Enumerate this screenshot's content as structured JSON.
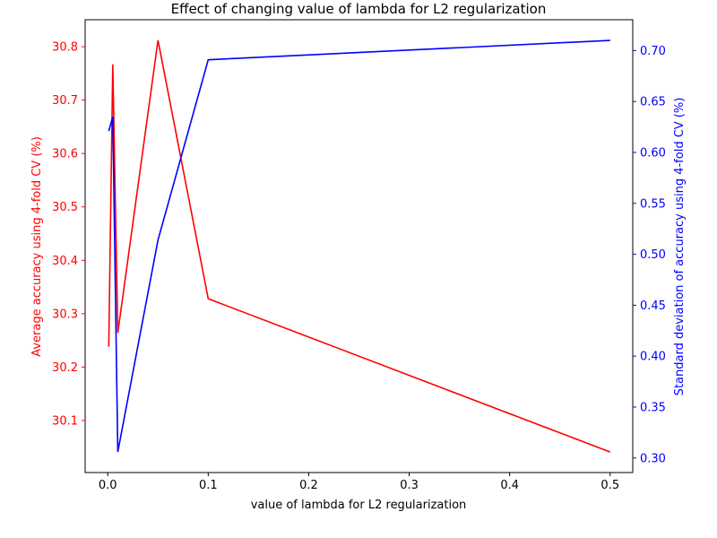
{
  "chart_data": {
    "type": "line",
    "title": "Effect of changing value of lambda for L2 regularization",
    "xlabel": "value of lambda for L2 regularization",
    "xlim": [
      -0.0225,
      0.5225
    ],
    "x_ticks": [
      0.0,
      0.1,
      0.2,
      0.3,
      0.4,
      0.5
    ],
    "x_tick_labels": [
      "0.0",
      "0.1",
      "0.2",
      "0.3",
      "0.4",
      "0.5"
    ],
    "grid": false,
    "series": [
      {
        "axis": "left",
        "color": "#ff0000",
        "x": [
          0.001,
          0.005,
          0.01,
          0.05,
          0.1,
          0.5
        ],
        "values": [
          30.238,
          30.767,
          30.264,
          30.812,
          30.328,
          30.041
        ]
      },
      {
        "axis": "right",
        "color": "#0000ff",
        "x": [
          0.001,
          0.005,
          0.01,
          0.05,
          0.1,
          0.5
        ],
        "values": [
          0.621,
          0.635,
          0.306,
          0.514,
          0.691,
          0.71
        ]
      }
    ],
    "y_left": {
      "label": "Average accuracy using 4-fold CV (%)",
      "color": "#ff0000",
      "ylim": [
        30.0025,
        30.8505
      ],
      "ticks": [
        30.1,
        30.2,
        30.3,
        30.4,
        30.5,
        30.6,
        30.7,
        30.8
      ],
      "tick_labels": [
        "30.1",
        "30.2",
        "30.3",
        "30.4",
        "30.5",
        "30.6",
        "30.7",
        "30.8"
      ]
    },
    "y_right": {
      "label": "Standard deviation of accuracy using 4-fold CV (%)",
      "color": "#0000ff",
      "ylim": [
        0.2857,
        0.7303
      ],
      "ticks": [
        0.3,
        0.35,
        0.4,
        0.45,
        0.5,
        0.55,
        0.6,
        0.65,
        0.7
      ],
      "tick_labels": [
        "0.30",
        "0.35",
        "0.40",
        "0.45",
        "0.50",
        "0.55",
        "0.60",
        "0.65",
        "0.70"
      ]
    }
  }
}
